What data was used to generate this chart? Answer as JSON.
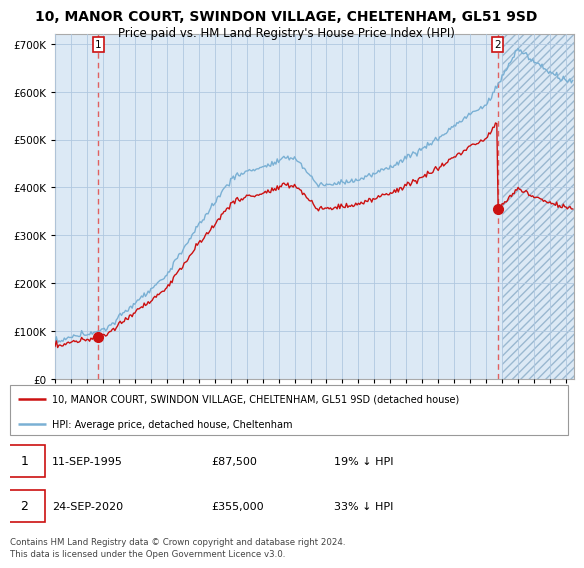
{
  "title": "10, MANOR COURT, SWINDON VILLAGE, CHELTENHAM, GL51 9SD",
  "subtitle": "Price paid vs. HM Land Registry's House Price Index (HPI)",
  "ylim": [
    0,
    720000
  ],
  "yticks": [
    0,
    100000,
    200000,
    300000,
    400000,
    500000,
    600000,
    700000
  ],
  "ytick_labels": [
    "£0",
    "£100K",
    "£200K",
    "£300K",
    "£400K",
    "£500K",
    "£600K",
    "£700K"
  ],
  "hpi_color": "#7ab0d4",
  "price_color": "#cc1111",
  "marker_color": "#cc1111",
  "dashed_color": "#e06060",
  "annotation_box_color": "#cc1111",
  "background_color": "#ffffff",
  "plot_bg_color": "#dce9f5",
  "grid_color": "#b0c8e0",
  "transaction1": {
    "date_x": 1995.71,
    "price": 87500,
    "label": "1",
    "date_str": "11-SEP-1995",
    "price_str": "£87,500",
    "hpi_str": "19% ↓ HPI"
  },
  "transaction2": {
    "date_x": 2020.73,
    "price": 355000,
    "label": "2",
    "date_str": "24-SEP-2020",
    "price_str": "£355,000",
    "hpi_str": "33% ↓ HPI"
  },
  "legend_line1": "10, MANOR COURT, SWINDON VILLAGE, CHELTENHAM, GL51 9SD (detached house)",
  "legend_line2": "HPI: Average price, detached house, Cheltenham",
  "footer": "Contains HM Land Registry data © Crown copyright and database right 2024.\nThis data is licensed under the Open Government Licence v3.0.",
  "xmin": 1993,
  "xmax": 2025.5
}
